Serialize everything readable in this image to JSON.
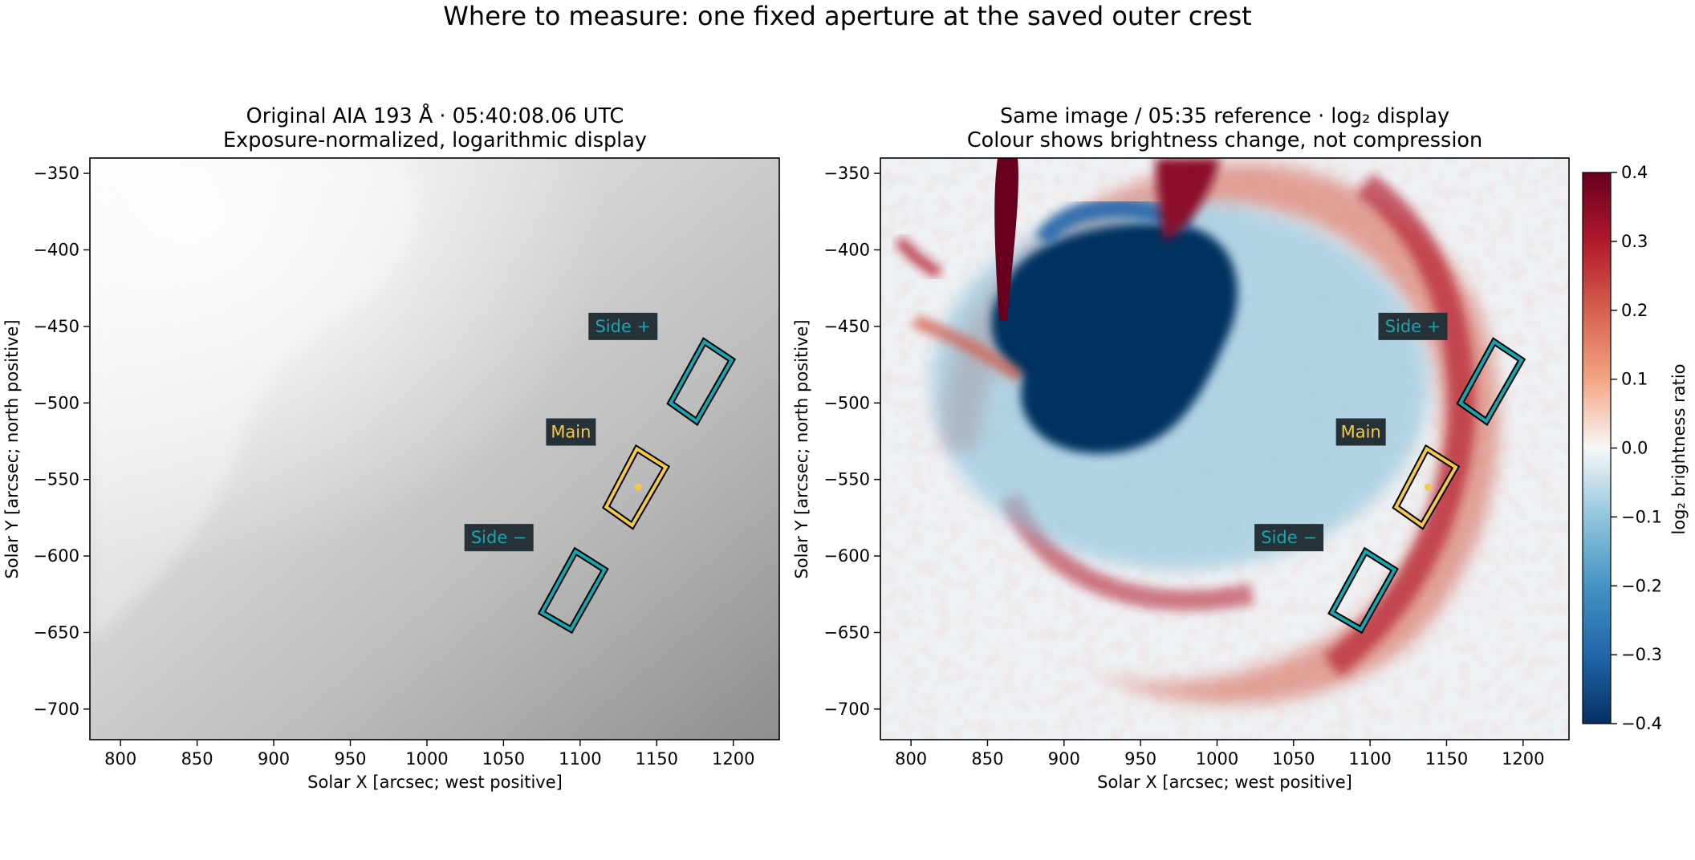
{
  "figure": {
    "suptitle": "Where to measure: one fixed aperture at the saved outer crest"
  },
  "panels": [
    {
      "title_line1": "Original AIA 193 Å · 05:40:08.06 UTC",
      "title_line2": "Exposure-normalized, logarithmic display",
      "xlabel": "Solar X [arcsec; west positive]",
      "ylabel": "Solar Y [arcsec; north positive]"
    },
    {
      "title_line1": "Same image / 05:35 reference · log₂ display",
      "title_line2": "Colour shows brightness change, not compression",
      "xlabel": "Solar X [arcsec; west positive]",
      "ylabel": "Solar Y [arcsec; north positive]"
    }
  ],
  "chart_data": {
    "type": "heatmap",
    "xlim": [
      780,
      1230
    ],
    "ylim": [
      -720,
      -340
    ],
    "xticks": [
      800,
      850,
      900,
      950,
      1000,
      1050,
      1100,
      1150,
      1200
    ],
    "yticks": [
      -350,
      -400,
      -450,
      -500,
      -550,
      -600,
      -650,
      -700
    ],
    "apertures": [
      {
        "name": "Side +",
        "center": [
          1179,
          -485
        ],
        "corners": [
          [
            1181,
            -460
          ],
          [
            1199,
            -472
          ],
          [
            1176,
            -512
          ],
          [
            1159,
            -500
          ]
        ],
        "edge_color": "#17a6b0",
        "label": "Side +",
        "label_at": [
          1128,
          -450
        ]
      },
      {
        "name": "Main",
        "center": [
          1138,
          -555
        ],
        "corners": [
          [
            1137,
            -530
          ],
          [
            1156,
            -542
          ],
          [
            1134,
            -580
          ],
          [
            1117,
            -568
          ]
        ],
        "edge_color": "#f2c94c",
        "label": "Main",
        "label_at": [
          1094,
          -519
        ],
        "marker": [
          1138,
          -555
        ]
      },
      {
        "name": "Side −",
        "center": [
          1097,
          -625
        ],
        "corners": [
          [
            1097,
            -597
          ],
          [
            1116,
            -609
          ],
          [
            1094,
            -648
          ],
          [
            1075,
            -637
          ]
        ],
        "edge_color": "#17a6b0",
        "label": "Side −",
        "label_at": [
          1047,
          -588
        ]
      }
    ],
    "colorbar": {
      "label": "log₂ brightness ratio",
      "range": [
        -0.4,
        0.4
      ],
      "ticks": [
        "0.4",
        "0.3",
        "0.2",
        "0.1",
        "0.0",
        "−0.1",
        "−0.2",
        "−0.3",
        "−0.4"
      ],
      "colormap": "RdBu_r"
    }
  },
  "colors": {
    "accent_main": "#f2c94c",
    "accent_side": "#17a6b0",
    "label_bg": "#263238",
    "positive": "#67001f",
    "negative": "#053061"
  }
}
